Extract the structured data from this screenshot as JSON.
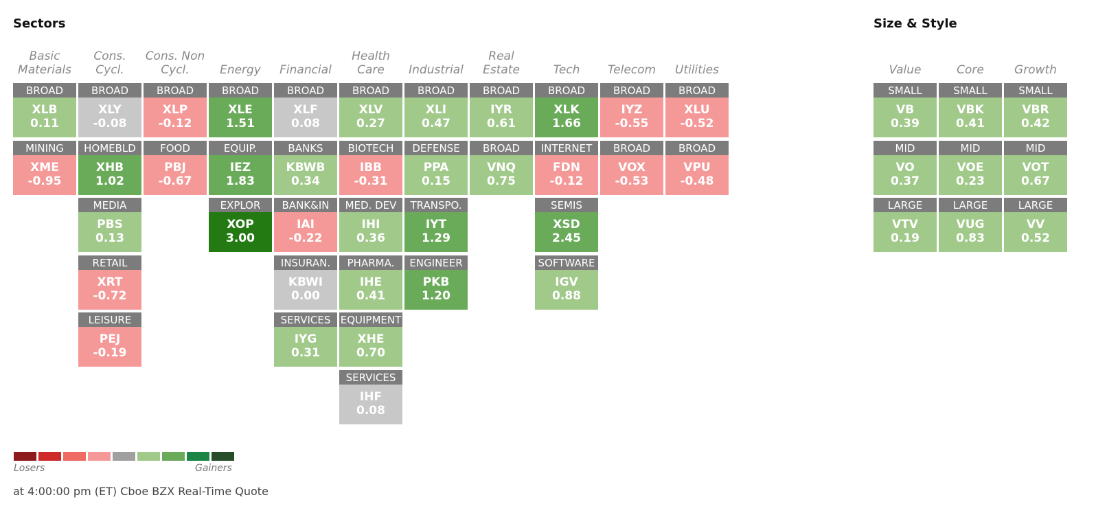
{
  "sectors_title": "Sectors",
  "size_style_title": "Size & Style",
  "colors": {
    "loss_strong": "#8e1c1c",
    "loss_med": "#cf2a2a",
    "loss_light": "#ef6b63",
    "loss_faint": "#f59898",
    "neutral": "#a0a0a0",
    "gain_faint": "#a0c98a",
    "gain_light": "#6aab5a",
    "gain_med": "#1a8545",
    "gain_strong": "#274d2a"
  },
  "legend": {
    "losers_label": "Losers",
    "gainers_label": "Gainers",
    "swatches": [
      "#8e1c1c",
      "#cf2a2a",
      "#ef6b63",
      "#f59898",
      "#a0a0a0",
      "#a0c98a",
      "#6aab5a",
      "#1a8545",
      "#274d2a"
    ]
  },
  "footer": "at 4:00:00 pm (ET) Cboe BZX Real-Time Quote",
  "sectors": [
    {
      "header": "Basic\nMaterials",
      "cells": [
        {
          "label": "BROAD",
          "ticker": "XLB",
          "change": "0.11",
          "color": "#a0c98a"
        },
        {
          "label": "MINING",
          "ticker": "XME",
          "change": "-0.95",
          "color": "#f59898"
        }
      ]
    },
    {
      "header": "Cons. Cycl.",
      "cells": [
        {
          "label": "BROAD",
          "ticker": "XLY",
          "change": "-0.08",
          "color": "#c8c8c8"
        },
        {
          "label": "HOMEBLD",
          "ticker": "XHB",
          "change": "1.02",
          "color": "#6aab5a"
        },
        {
          "label": "MEDIA",
          "ticker": "PBS",
          "change": "0.13",
          "color": "#a0c98a"
        },
        {
          "label": "RETAIL",
          "ticker": "XRT",
          "change": "-0.72",
          "color": "#f59898"
        },
        {
          "label": "LEISURE",
          "ticker": "PEJ",
          "change": "-0.19",
          "color": "#f59898"
        }
      ]
    },
    {
      "header": "Cons. Non\nCycl.",
      "cells": [
        {
          "label": "BROAD",
          "ticker": "XLP",
          "change": "-0.12",
          "color": "#f59898"
        },
        {
          "label": "FOOD",
          "ticker": "PBJ",
          "change": "-0.67",
          "color": "#f59898"
        }
      ]
    },
    {
      "header": "Energy",
      "cells": [
        {
          "label": "BROAD",
          "ticker": "XLE",
          "change": "1.51",
          "color": "#6aab5a"
        },
        {
          "label": "EQUIP.",
          "ticker": "IEZ",
          "change": "1.83",
          "color": "#6aab5a"
        },
        {
          "label": "EXPLOR",
          "ticker": "XOP",
          "change": "3.00",
          "color": "#237a12"
        }
      ]
    },
    {
      "header": "Financial",
      "cells": [
        {
          "label": "BROAD",
          "ticker": "XLF",
          "change": "0.08",
          "color": "#c8c8c8"
        },
        {
          "label": "BANKS",
          "ticker": "KBWB",
          "change": "0.34",
          "color": "#a0c98a"
        },
        {
          "label": "BANK&IN",
          "ticker": "IAI",
          "change": "-0.22",
          "color": "#f59898"
        },
        {
          "label": "INSURAN.",
          "ticker": "KBWI",
          "change": "0.00",
          "color": "#c8c8c8"
        },
        {
          "label": "SERVICES",
          "ticker": "IYG",
          "change": "0.31",
          "color": "#a0c98a"
        }
      ]
    },
    {
      "header": "Health\nCare",
      "cells": [
        {
          "label": "BROAD",
          "ticker": "XLV",
          "change": "0.27",
          "color": "#a0c98a"
        },
        {
          "label": "BIOTECH",
          "ticker": "IBB",
          "change": "-0.31",
          "color": "#f59898"
        },
        {
          "label": "MED. DEV",
          "ticker": "IHI",
          "change": "0.36",
          "color": "#a0c98a"
        },
        {
          "label": "PHARMA.",
          "ticker": "IHE",
          "change": "0.41",
          "color": "#a0c98a"
        },
        {
          "label": "EQUIPMENT",
          "ticker": "XHE",
          "change": "0.70",
          "color": "#a0c98a"
        },
        {
          "label": "SERVICES",
          "ticker": "IHF",
          "change": "0.08",
          "color": "#c8c8c8"
        }
      ]
    },
    {
      "header": "Industrial",
      "cells": [
        {
          "label": "BROAD",
          "ticker": "XLI",
          "change": "0.47",
          "color": "#a0c98a"
        },
        {
          "label": "DEFENSE",
          "ticker": "PPA",
          "change": "0.15",
          "color": "#a0c98a"
        },
        {
          "label": "TRANSPO.",
          "ticker": "IYT",
          "change": "1.29",
          "color": "#6aab5a"
        },
        {
          "label": "ENGINEER",
          "ticker": "PKB",
          "change": "1.20",
          "color": "#6aab5a"
        }
      ]
    },
    {
      "header": "Real Estate",
      "cells": [
        {
          "label": "BROAD",
          "ticker": "IYR",
          "change": "0.61",
          "color": "#a0c98a"
        },
        {
          "label": "BROAD",
          "ticker": "VNQ",
          "change": "0.75",
          "color": "#a0c98a"
        }
      ]
    },
    {
      "header": "Tech",
      "cells": [
        {
          "label": "BROAD",
          "ticker": "XLK",
          "change": "1.66",
          "color": "#6aab5a"
        },
        {
          "label": "INTERNET",
          "ticker": "FDN",
          "change": "-0.12",
          "color": "#f59898"
        },
        {
          "label": "SEMIS",
          "ticker": "XSD",
          "change": "2.45",
          "color": "#6aab5a"
        },
        {
          "label": "SOFTWARE",
          "ticker": "IGV",
          "change": "0.88",
          "color": "#a0c98a"
        }
      ]
    },
    {
      "header": "Telecom",
      "cells": [
        {
          "label": "BROAD",
          "ticker": "IYZ",
          "change": "-0.55",
          "color": "#f59898"
        },
        {
          "label": "BROAD",
          "ticker": "VOX",
          "change": "-0.53",
          "color": "#f59898"
        }
      ]
    },
    {
      "header": "Utilities",
      "cells": [
        {
          "label": "BROAD",
          "ticker": "XLU",
          "change": "-0.52",
          "color": "#f59898"
        },
        {
          "label": "BROAD",
          "ticker": "VPU",
          "change": "-0.48",
          "color": "#f59898"
        }
      ]
    }
  ],
  "size_style": [
    {
      "header": "Value",
      "cells": [
        {
          "label": "SMALL",
          "ticker": "VB",
          "change": "0.39",
          "color": "#a0c98a"
        },
        {
          "label": "MID",
          "ticker": "VO",
          "change": "0.37",
          "color": "#a0c98a"
        },
        {
          "label": "LARGE",
          "ticker": "VTV",
          "change": "0.19",
          "color": "#a0c98a"
        }
      ]
    },
    {
      "header": "Core",
      "cells": [
        {
          "label": "SMALL",
          "ticker": "VBK",
          "change": "0.41",
          "color": "#a0c98a"
        },
        {
          "label": "MID",
          "ticker": "VOE",
          "change": "0.23",
          "color": "#a0c98a"
        },
        {
          "label": "LARGE",
          "ticker": "VUG",
          "change": "0.83",
          "color": "#a0c98a"
        }
      ]
    },
    {
      "header": "Growth",
      "cells": [
        {
          "label": "SMALL",
          "ticker": "VBR",
          "change": "0.42",
          "color": "#a0c98a"
        },
        {
          "label": "MID",
          "ticker": "VOT",
          "change": "0.67",
          "color": "#a0c98a"
        },
        {
          "label": "LARGE",
          "ticker": "VV",
          "change": "0.52",
          "color": "#a0c98a"
        }
      ]
    }
  ]
}
